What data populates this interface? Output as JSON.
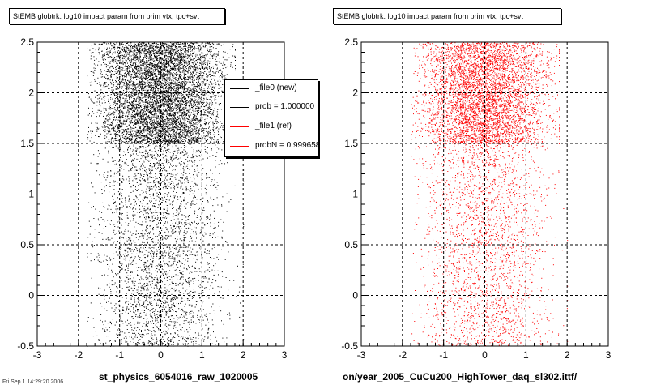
{
  "footer_text": "Fri Sep  1 14:29:20 2006",
  "chart_data": [
    {
      "type": "scatter",
      "title": "StEMB globtrk: log10 impact param from prim vtx, tpc+svt",
      "xlabel": "st_physics_6054016_raw_1020005",
      "xlim": [
        -3,
        3
      ],
      "ylim": [
        -0.5,
        2.5
      ],
      "xticks": [
        "-3",
        "-2",
        "-1",
        "0",
        "1",
        "2",
        "3"
      ],
      "yticks": [
        "-0.5",
        "0",
        "0.5",
        "1",
        "1.5",
        "2",
        "2.5"
      ],
      "grid": true,
      "marker_color": "#000000",
      "density": [
        {
          "y_range": [
            1.5,
            2.5
          ],
          "x_range": [
            -1.8,
            1.8
          ],
          "level": "dense",
          "points": 7000
        },
        {
          "y_range": [
            -0.5,
            1.5
          ],
          "x_range": [
            -1.8,
            2.0
          ],
          "level": "sparse",
          "points": 3200
        }
      ],
      "legend": {
        "placement": "top-right",
        "entries": [
          {
            "label": "_file0 (new)",
            "color": "#000000"
          },
          {
            "label": "prob = 1.000000",
            "color": "#000000"
          },
          {
            "label": "_file1 (ref)",
            "color": "#ff0000"
          },
          {
            "label": "probN = 0.999658",
            "color": "#ff0000"
          }
        ]
      }
    },
    {
      "type": "scatter",
      "title": "StEMB globtrk: log10 impact param from prim vtx, tpc+svt",
      "xlabel": "on/year_2005_CuCu200_HighTower_daq_sl302.ittf/",
      "xlim": [
        -3,
        3
      ],
      "ylim": [
        -0.5,
        2.5
      ],
      "xticks": [
        "-3",
        "-2",
        "-1",
        "0",
        "1",
        "2",
        "3"
      ],
      "yticks": [
        "-0.5",
        "0",
        "0.5",
        "1",
        "1.5",
        "2",
        "2.5"
      ],
      "grid": true,
      "marker_color": "#ff0000",
      "density": [
        {
          "y_range": [
            1.5,
            2.5
          ],
          "x_range": [
            -1.8,
            1.8
          ],
          "level": "dense",
          "points": 4800
        },
        {
          "y_range": [
            -0.5,
            1.5
          ],
          "x_range": [
            -1.8,
            2.0
          ],
          "level": "sparse",
          "points": 2400
        }
      ]
    }
  ]
}
